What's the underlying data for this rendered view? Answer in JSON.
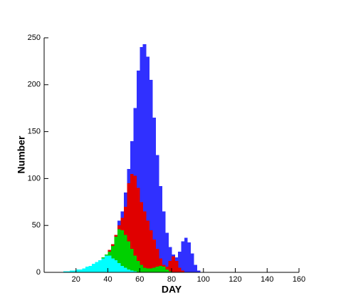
{
  "chart_data": {
    "type": "histogram",
    "xlabel": "DAY",
    "ylabel": "Number",
    "bins": [
      0,
      2,
      4,
      6,
      8,
      10,
      12,
      14,
      16,
      18,
      20,
      22,
      24,
      26,
      28,
      30,
      32,
      34,
      36,
      38,
      40,
      42,
      44,
      46,
      48,
      50,
      52,
      54,
      56,
      58,
      60,
      62,
      64,
      66,
      68,
      70,
      72,
      74,
      76,
      78,
      80,
      82,
      84,
      86,
      88,
      90,
      92,
      94,
      96,
      98,
      100,
      102
    ],
    "series": [
      {
        "color": "#3030ff",
        "values": [
          0,
          0,
          0,
          0,
          0,
          0,
          1,
          1,
          2,
          2,
          3,
          3,
          4,
          6,
          7,
          9,
          11,
          13,
          16,
          19,
          24,
          30,
          40,
          55,
          65,
          85,
          110,
          140,
          175,
          215,
          240,
          243,
          230,
          205,
          165,
          125,
          92,
          65,
          42,
          27,
          19,
          16,
          22,
          33,
          37,
          32,
          20,
          8,
          2,
          0,
          0
        ]
      },
      {
        "color": "#e00000",
        "values": [
          0,
          0,
          0,
          0,
          0,
          0,
          1,
          1,
          2,
          2,
          3,
          3,
          4,
          6,
          7,
          9,
          11,
          13,
          16,
          19,
          24,
          30,
          40,
          50,
          58,
          70,
          95,
          105,
          103,
          90,
          75,
          65,
          55,
          45,
          35,
          25,
          15,
          8,
          6,
          12,
          17,
          12,
          5,
          2,
          0,
          0,
          0,
          0,
          0,
          0,
          0
        ]
      },
      {
        "color": "#00d000",
        "values": [
          0,
          0,
          0,
          0,
          0,
          0,
          1,
          1,
          2,
          2,
          3,
          3,
          4,
          6,
          7,
          9,
          11,
          13,
          16,
          19,
          22,
          28,
          38,
          46,
          45,
          40,
          33,
          25,
          18,
          12,
          8,
          5,
          4,
          4,
          5,
          6,
          7,
          6,
          3,
          1,
          0,
          0,
          0,
          0,
          0,
          0,
          0,
          0,
          0,
          0,
          0
        ]
      },
      {
        "color": "#00ffff",
        "values": [
          0,
          0,
          0,
          0,
          0,
          0,
          1,
          1,
          2,
          2,
          3,
          3,
          4,
          6,
          7,
          9,
          11,
          13,
          15,
          18,
          18,
          15,
          13,
          10,
          7,
          5,
          3,
          2,
          1,
          0,
          0,
          0,
          0,
          0,
          0,
          0,
          0,
          0,
          0,
          0,
          0,
          0,
          0,
          0,
          0,
          0,
          0,
          0,
          0,
          0,
          0
        ]
      }
    ],
    "xlim": [
      0,
      160
    ],
    "xticks": [
      20,
      40,
      60,
      80,
      100,
      120,
      140,
      160
    ],
    "ylim": [
      0,
      250
    ],
    "yticks": [
      0,
      50,
      100,
      150,
      200,
      250
    ]
  }
}
